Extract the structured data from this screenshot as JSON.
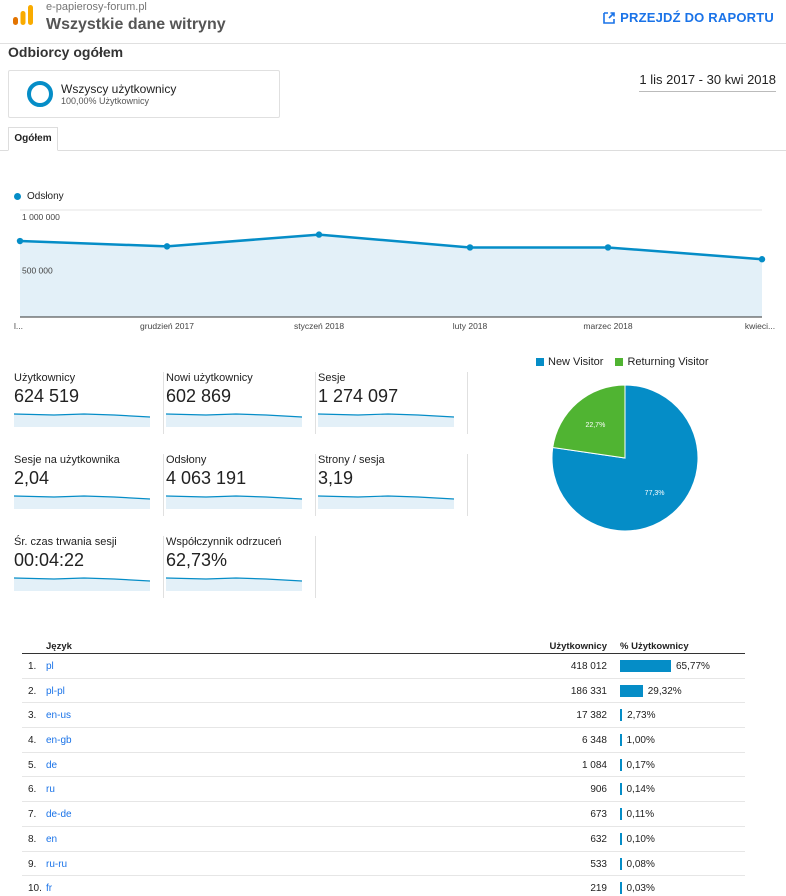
{
  "header": {
    "site": "e-papierosy-forum.pl",
    "view": "Wszystkie dane witryny",
    "report_link": "PRZEJDŹ DO RAPORTU"
  },
  "section_title": "Odbiorcy ogółem",
  "segment": {
    "name": "Wszyscy użytkownicy",
    "sub": "100,00% Użytkownicy"
  },
  "date_range": "1 lis 2017 - 30 kwi 2018",
  "tab": "Ogółem",
  "chart_data": {
    "type": "line",
    "series": [
      {
        "name": "Odsłony",
        "values": [
          710000,
          660000,
          770000,
          650000,
          650000,
          540000
        ]
      }
    ],
    "x_labels": [
      "l...",
      "grudzień 2017",
      "styczeń 2018",
      "luty 2018",
      "marzec 2018",
      "kwieci..."
    ],
    "y_ticks": [
      "1 000 000",
      "500 000"
    ],
    "ylim": [
      0,
      1000000
    ],
    "color": "#058dc7"
  },
  "metrics": [
    {
      "label": "Użytkownicy",
      "value": "624 519"
    },
    {
      "label": "Nowi użytkownicy",
      "value": "602 869"
    },
    {
      "label": "Sesje",
      "value": "1 274 097"
    },
    {
      "label": "Sesje na użytkownika",
      "value": "2,04"
    },
    {
      "label": "Odsłony",
      "value": "4 063 191"
    },
    {
      "label": "Strony / sesja",
      "value": "3,19"
    },
    {
      "label": "Śr. czas trwania sesji",
      "value": "00:04:22"
    },
    {
      "label": "Współczynnik odrzuceń",
      "value": "62,73%"
    }
  ],
  "pie": {
    "type": "pie",
    "slices": [
      {
        "name": "New Visitor",
        "value": 77.3,
        "label": "77,3%",
        "color": "#058dc7"
      },
      {
        "name": "Returning Visitor",
        "value": 22.7,
        "label": "22,7%",
        "color": "#50b432"
      }
    ]
  },
  "table": {
    "headers": {
      "lang": "Język",
      "users": "Użytkownicy",
      "pct": "% Użytkownicy"
    },
    "rows": [
      {
        "num": "1.",
        "lang": "pl",
        "users": "418 012",
        "pct": "65,77%",
        "value": 65.77
      },
      {
        "num": "2.",
        "lang": "pl-pl",
        "users": "186 331",
        "pct": "29,32%",
        "value": 29.32
      },
      {
        "num": "3.",
        "lang": "en-us",
        "users": "17 382",
        "pct": "2,73%",
        "value": 2.73
      },
      {
        "num": "4.",
        "lang": "en-gb",
        "users": "6 348",
        "pct": "1,00%",
        "value": 1.0
      },
      {
        "num": "5.",
        "lang": "de",
        "users": "1 084",
        "pct": "0,17%",
        "value": 0.17
      },
      {
        "num": "6.",
        "lang": "ru",
        "users": "906",
        "pct": "0,14%",
        "value": 0.14
      },
      {
        "num": "7.",
        "lang": "de-de",
        "users": "673",
        "pct": "0,11%",
        "value": 0.11
      },
      {
        "num": "8.",
        "lang": "en",
        "users": "632",
        "pct": "0,10%",
        "value": 0.1
      },
      {
        "num": "9.",
        "lang": "ru-ru",
        "users": "533",
        "pct": "0,08%",
        "value": 0.08
      },
      {
        "num": "10.",
        "lang": "fr",
        "users": "219",
        "pct": "0,03%",
        "value": 0.03
      }
    ]
  }
}
